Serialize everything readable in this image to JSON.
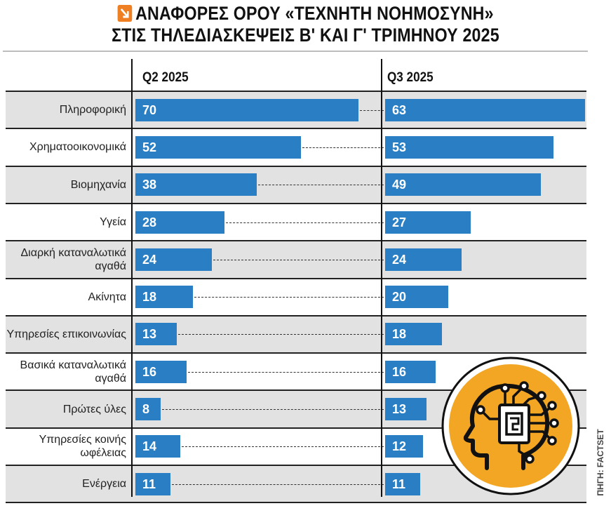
{
  "title": {
    "line1": "ΑΝΑΦΟΡΕΣ ΟΡΟΥ «ΤΕΧΝΗΤΗ ΝΟΗΜΟΣΥΝΗ»",
    "line2": "ΣΤΙΣ ΤΗΛΕΔΙΑΣΚΕΨΕΙΣ Β' ΚΑΙ Γ' ΤΡΙΜΗΝΟΥ 2025"
  },
  "source": "ΠΗΓΗ: FACTSET",
  "colors": {
    "bar": "#2a7fc4",
    "rowShade": "#e2e2e2",
    "iconOrange": "#f2a623",
    "titleIcon": "#ee7f22"
  },
  "chart_data": {
    "type": "bar",
    "orientation": "horizontal",
    "title": "ΑΝΑΦΟΡΕΣ ΟΡΟΥ «ΤΕΧΝΗΤΗ ΝΟΗΜΟΣΥΝΗ» ΣΤΙΣ ΤΗΛΕΔΙΑΣΚΕΨΕΙΣ Β' ΚΑΙ Γ' ΤΡΙΜΗΝΟΥ 2025",
    "categories": [
      "Πληροφορική",
      "Χρηματοοικονομικά",
      "Βιομηχανία",
      "Υγεία",
      "Διαρκή καταναλωτικά αγαθά",
      "Ακίνητα",
      "Υπηρεσίες επικοινωνίας",
      "Βασικά καταναλωτικά αγαθά",
      "Πρώτες ύλες",
      "Υπηρεσίες κοινής ωφέλειας",
      "Ενέργεια"
    ],
    "series": [
      {
        "name": "Q2 2025",
        "values": [
          70,
          52,
          38,
          28,
          24,
          18,
          13,
          16,
          8,
          14,
          11
        ]
      },
      {
        "name": "Q3 2025",
        "values": [
          63,
          53,
          49,
          27,
          24,
          20,
          18,
          16,
          13,
          12,
          11
        ]
      }
    ],
    "xlim": [
      0,
      70
    ],
    "grid": false,
    "legend": "top"
  }
}
